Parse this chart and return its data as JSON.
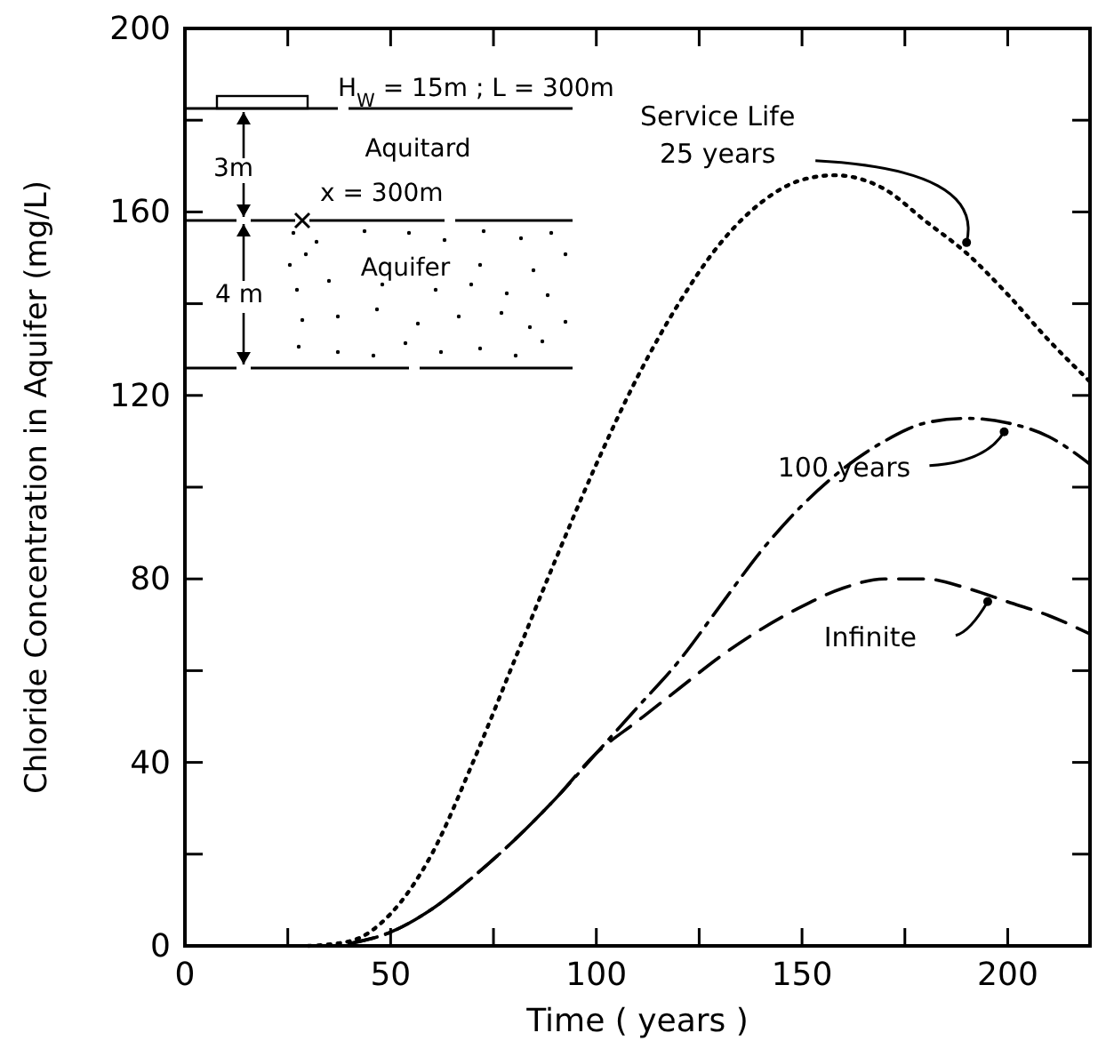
{
  "chart_data": {
    "type": "line",
    "xlabel": "Time  ( years )",
    "ylabel": "Chloride  Concentration  in  Aquifer  (mg/L)",
    "xlim": [
      0,
      220
    ],
    "ylim": [
      0,
      200
    ],
    "xticks": [
      0,
      {
        "value": 25,
        "label": null
      },
      50,
      {
        "value": 75,
        "label": null
      },
      100,
      {
        "value": 125,
        "label": null
      },
      150,
      {
        "value": 175,
        "label": null
      },
      200
    ],
    "yticks": [
      0,
      {
        "value": 20,
        "label": null
      },
      40,
      {
        "value": 60,
        "label": null
      },
      80,
      {
        "value": 100,
        "label": null
      },
      120,
      {
        "value": 140,
        "label": null
      },
      160,
      {
        "value": 180,
        "label": null
      },
      200
    ],
    "grid": false,
    "marker": "none",
    "series": [
      {
        "color": "#000000",
        "line_style": "dotted",
        "x": [
          30,
          40,
          50,
          60,
          70,
          80,
          90,
          100,
          110,
          120,
          130,
          140,
          150,
          158,
          170,
          180,
          190,
          200,
          210,
          220
        ],
        "values": [
          0,
          1,
          7,
          20,
          40,
          62,
          84,
          105,
          124,
          140,
          153,
          162,
          167,
          168,
          165,
          158,
          151,
          142,
          132,
          123
        ]
      },
      {
        "color": "#000000",
        "line_style": "dashdot",
        "x": [
          40,
          50,
          60,
          70,
          80,
          90,
          100,
          110,
          120,
          130,
          140,
          150,
          160,
          170,
          180,
          190,
          200,
          210,
          220
        ],
        "values": [
          0.5,
          3,
          8,
          15,
          23,
          32,
          42,
          52,
          62,
          74,
          86,
          96,
          104,
          110,
          114,
          115,
          114,
          111,
          105
        ]
      },
      {
        "color": "#000000",
        "line_style": "dashed",
        "x": [
          40,
          50,
          60,
          70,
          80,
          90,
          100,
          110,
          120,
          130,
          140,
          150,
          160,
          170,
          180,
          190,
          200,
          210,
          220
        ],
        "values": [
          0.5,
          3,
          8,
          15,
          23,
          32,
          42,
          49,
          56,
          63,
          69,
          74,
          78,
          80,
          80,
          78,
          75,
          72,
          68
        ]
      }
    ],
    "annotations": [
      {
        "text": "Service Life\n25 years",
        "x": 190,
        "y": 151
      },
      {
        "text": "100 years",
        "x": 200,
        "y": 114
      },
      {
        "text": "Infinite",
        "x": 196,
        "y": 77
      },
      "H$_{W}$ = 15m ; L = 300m",
      "Aquitard",
      "3m",
      "x = 300m",
      "Aquifer",
      "4 m"
    ]
  }
}
